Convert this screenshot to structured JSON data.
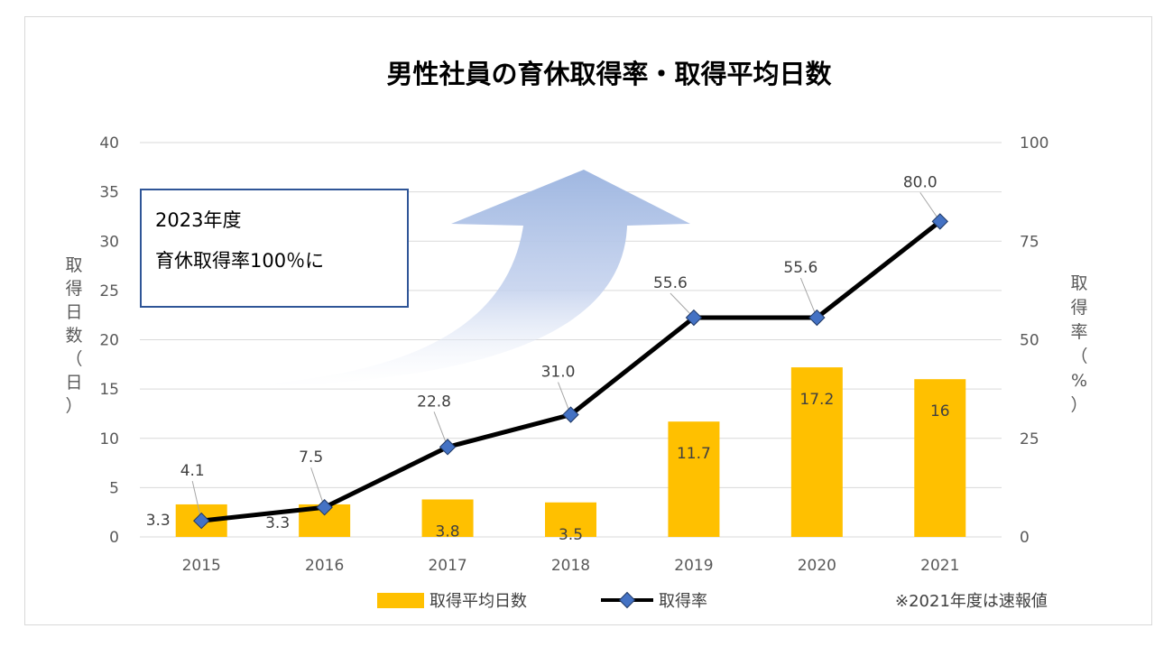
{
  "chart_data": {
    "type": "bar+line",
    "title": "男性社員の育休取得率・取得平均日数",
    "categories": [
      "2015",
      "2016",
      "2017",
      "2018",
      "2019",
      "2020",
      "2021"
    ],
    "series": [
      {
        "name": "取得平均日数",
        "kind": "bar",
        "axis": "left",
        "color": "#FFC000",
        "values": [
          3.3,
          3.3,
          3.8,
          3.5,
          11.7,
          17.2,
          16
        ],
        "labels": [
          "3.3",
          "3.3",
          "3.8",
          "3.5",
          "11.7",
          "17.2",
          "16"
        ]
      },
      {
        "name": "取得率",
        "kind": "line",
        "axis": "right",
        "color": "#000000",
        "marker_color": "#4472C4",
        "values": [
          4.1,
          7.5,
          22.8,
          31.0,
          55.6,
          55.6,
          80.0
        ],
        "labels": [
          "4.1",
          "7.5",
          "22.8",
          "31.0",
          "55.6",
          "55.6",
          "80.0"
        ]
      }
    ],
    "y_left": {
      "label_chars": [
        "取",
        "得",
        "日",
        "数",
        "（",
        "日",
        "）"
      ],
      "range": [
        0,
        40
      ],
      "ticks": [
        "0",
        "5",
        "10",
        "15",
        "20",
        "25",
        "30",
        "35",
        "40"
      ]
    },
    "y_right": {
      "label_chars": [
        "取",
        "得",
        "率",
        "（",
        "%",
        "）"
      ],
      "range": [
        0,
        100
      ],
      "ticks": [
        "0",
        "25",
        "50",
        "75",
        "100"
      ]
    },
    "grid": true,
    "legend": {
      "placement": "bottom",
      "items": [
        "取得平均日数",
        "取得率"
      ]
    },
    "footnote": "※2021年度は速報値",
    "callout": {
      "line1": "2023年度",
      "line2": "育休取得率100％に"
    }
  }
}
